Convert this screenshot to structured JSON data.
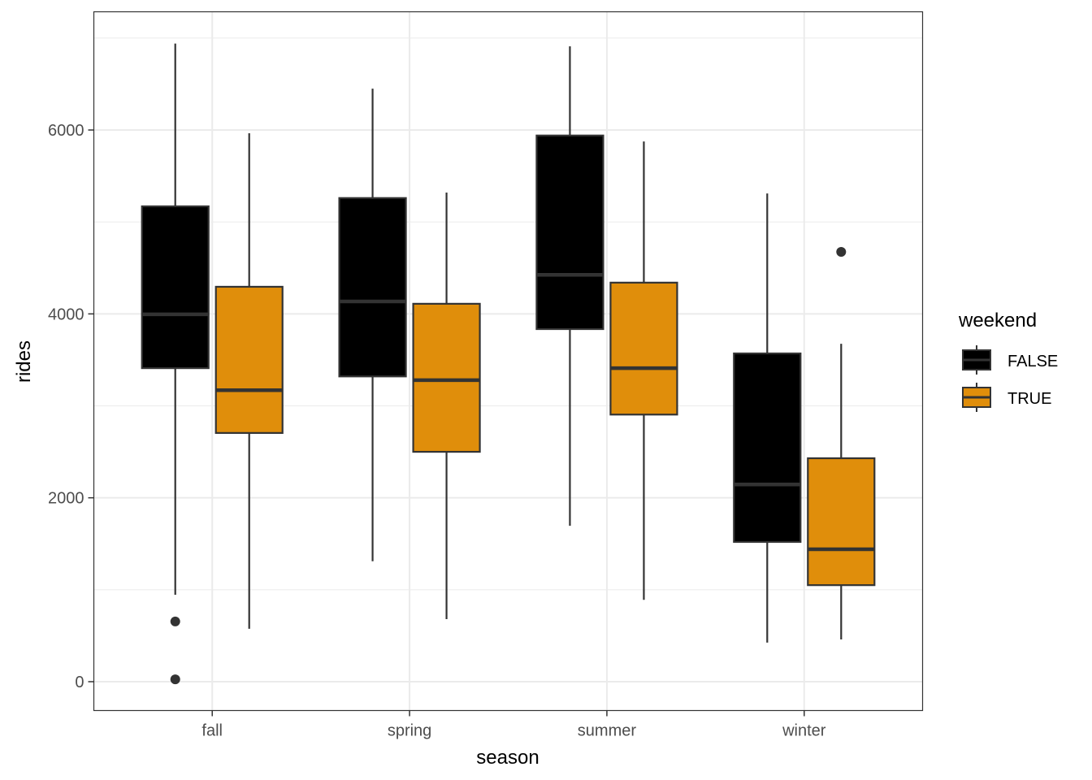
{
  "chart_data": {
    "type": "boxplot",
    "title": "",
    "xlabel": "season",
    "ylabel": "rides",
    "categories": [
      "fall",
      "spring",
      "summer",
      "winter"
    ],
    "y_ticks": [
      0,
      2000,
      4000,
      6000
    ],
    "y_tick_labels": [
      "0",
      "2000",
      "4000",
      "6000"
    ],
    "ylim": [
      -300,
      7300
    ],
    "grid": true,
    "legend": {
      "title": "weekend",
      "placement": "right",
      "entries": [
        {
          "label": "FALSE",
          "color": "#000000"
        },
        {
          "label": "TRUE",
          "color": "#E08E0B"
        }
      ]
    },
    "series": [
      {
        "name": "FALSE",
        "color": "#000000",
        "boxes": [
          {
            "category": "fall",
            "whisker_low": 945,
            "q1": 3410,
            "median": 3995,
            "q3": 5170,
            "whisker_high": 6940,
            "outliers": [
              655,
              25
            ]
          },
          {
            "category": "spring",
            "whisker_low": 1310,
            "q1": 3320,
            "median": 4135,
            "q3": 5260,
            "whisker_high": 6450,
            "outliers": []
          },
          {
            "category": "summer",
            "whisker_low": 1695,
            "q1": 3835,
            "median": 4425,
            "q3": 5940,
            "whisker_high": 6910,
            "outliers": []
          },
          {
            "category": "winter",
            "whisker_low": 425,
            "q1": 1520,
            "median": 2145,
            "q3": 3570,
            "whisker_high": 5310,
            "outliers": []
          }
        ]
      },
      {
        "name": "TRUE",
        "color": "#E08E0B",
        "boxes": [
          {
            "category": "fall",
            "whisker_low": 575,
            "q1": 2705,
            "median": 3170,
            "q3": 4295,
            "whisker_high": 5965,
            "outliers": []
          },
          {
            "category": "spring",
            "whisker_low": 680,
            "q1": 2500,
            "median": 3280,
            "q3": 4110,
            "whisker_high": 5320,
            "outliers": []
          },
          {
            "category": "summer",
            "whisker_low": 890,
            "q1": 2905,
            "median": 3410,
            "q3": 4340,
            "whisker_high": 5875,
            "outliers": []
          },
          {
            "category": "winter",
            "whisker_low": 460,
            "q1": 1050,
            "median": 1440,
            "q3": 2430,
            "whisker_high": 3675,
            "outliers": [
              4675
            ]
          }
        ]
      }
    ]
  }
}
